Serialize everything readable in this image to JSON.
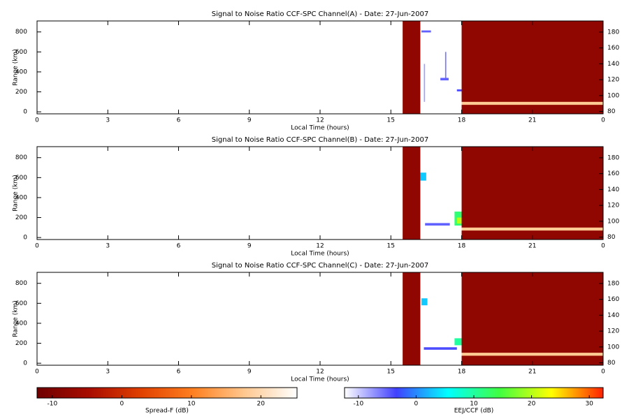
{
  "chart_data": [
    {
      "type": "heatmap",
      "title": "Signal to Noise Ratio CCF-SPC Channel(A) - Date: 27-Jun-2007",
      "xlabel": "Local Time (hours)",
      "ylabel": "Range (km)",
      "xlim": [
        0,
        24
      ],
      "xticks": [
        0,
        3,
        6,
        9,
        12,
        15,
        18,
        21,
        {
          "value": 24,
          "label": "0"
        }
      ],
      "ylim": [
        -20,
        910
      ],
      "yticks": [
        0,
        200,
        400,
        600,
        800
      ],
      "y2lim": [
        77,
        194
      ],
      "y2ticks": [
        80,
        100,
        120,
        140,
        160,
        180
      ],
      "patches": [
        {
          "t0": 15.5,
          "t1": 16.25,
          "r0": -20,
          "r1": 910,
          "value": -8,
          "scale": 3
        },
        {
          "t0": 18,
          "t1": 24,
          "r0": -20,
          "r1": 910,
          "value": -8,
          "scale": 3
        },
        {
          "t0": 18,
          "t1": 24,
          "r0": 70,
          "r1": 100,
          "value": 18,
          "scale": 3
        },
        {
          "t0": 16.3,
          "t1": 16.7,
          "r0": 795,
          "r1": 815,
          "value": -5,
          "scale": 4
        },
        {
          "t0": 17.1,
          "t1": 17.45,
          "r0": 315,
          "r1": 340,
          "value": -5,
          "scale": 4
        },
        {
          "t0": 17.3,
          "t1": 17.35,
          "r0": 340,
          "r1": 600,
          "value": -6,
          "scale": 4
        },
        {
          "t0": 17.8,
          "t1": 18,
          "r0": 205,
          "r1": 225,
          "value": -4,
          "scale": 4
        },
        {
          "t0": 16.4,
          "t1": 16.45,
          "r0": 100,
          "r1": 480,
          "value": -8,
          "scale": 4
        }
      ]
    },
    {
      "type": "heatmap",
      "title": "Signal to Noise Ratio CCF-SPC Channel(B) - Date: 27-Jun-2007",
      "xlabel": "Local Time (hours)",
      "ylabel": "Range (km)",
      "xlim": [
        0,
        24
      ],
      "xticks": [
        0,
        3,
        6,
        9,
        12,
        15,
        18,
        21,
        {
          "value": 24,
          "label": "0"
        }
      ],
      "ylim": [
        -20,
        910
      ],
      "yticks": [
        0,
        200,
        400,
        600,
        800
      ],
      "y2lim": [
        77,
        194
      ],
      "y2ticks": [
        80,
        100,
        120,
        140,
        160,
        180
      ],
      "patches": [
        {
          "t0": 15.5,
          "t1": 16.25,
          "r0": -20,
          "r1": 910,
          "value": -8,
          "scale": 3
        },
        {
          "t0": 18,
          "t1": 24,
          "r0": -20,
          "r1": 910,
          "value": -8,
          "scale": 3
        },
        {
          "t0": 18,
          "t1": 24,
          "r0": 70,
          "r1": 100,
          "value": 18,
          "scale": 3
        },
        {
          "t0": 16.25,
          "t1": 16.5,
          "r0": 570,
          "r1": 650,
          "value": 3,
          "scale": 4
        },
        {
          "t0": 16.45,
          "t1": 17.5,
          "r0": 120,
          "r1": 145,
          "value": -5,
          "scale": 4
        },
        {
          "t0": 17.7,
          "t1": 18,
          "r0": 120,
          "r1": 260,
          "value": 12,
          "scale": 4
        },
        {
          "t0": 17.8,
          "t1": 18,
          "r0": 140,
          "r1": 200,
          "value": 20,
          "scale": 4
        }
      ]
    },
    {
      "type": "heatmap",
      "title": "Signal to Noise Ratio CCF-SPC Channel(C) - Date: 27-Jun-2007",
      "xlabel": "Local Time (hours)",
      "ylabel": "Range (km)",
      "xlim": [
        0,
        24
      ],
      "xticks": [
        0,
        3,
        6,
        9,
        12,
        15,
        18,
        21,
        {
          "value": 24,
          "label": "0"
        }
      ],
      "ylim": [
        -20,
        910
      ],
      "yticks": [
        0,
        200,
        400,
        600,
        800
      ],
      "y2lim": [
        77,
        194
      ],
      "y2ticks": [
        80,
        100,
        120,
        140,
        160,
        180
      ],
      "patches": [
        {
          "t0": 15.5,
          "t1": 16.25,
          "r0": -20,
          "r1": 910,
          "value": -8,
          "scale": 3
        },
        {
          "t0": 18,
          "t1": 24,
          "r0": -20,
          "r1": 910,
          "value": -8,
          "scale": 3
        },
        {
          "t0": 18,
          "t1": 24,
          "r0": 75,
          "r1": 105,
          "value": 18,
          "scale": 3
        },
        {
          "t0": 16.3,
          "t1": 16.55,
          "r0": 580,
          "r1": 650,
          "value": 3,
          "scale": 4
        },
        {
          "t0": 16.4,
          "t1": 17.8,
          "r0": 135,
          "r1": 160,
          "value": -4,
          "scale": 4
        },
        {
          "t0": 17.7,
          "t1": 18,
          "r0": 180,
          "r1": 250,
          "value": 10,
          "scale": 4
        }
      ]
    },
    {
      "type": "colorbar",
      "label": "Spread-F (dB)",
      "xlim": [
        -12.2,
        25.2
      ],
      "xticks": [
        -10,
        0,
        10,
        20
      ],
      "colors": [
        "#6e0000",
        "#a80c00",
        "#e04000",
        "#ff8020",
        "#ffc890",
        "#ffffff"
      ]
    },
    {
      "type": "colorbar",
      "label": "EEJ/CCF (dB)",
      "xlim": [
        -12.4,
        32.4
      ],
      "xticks": [
        -10,
        0,
        10,
        20,
        30
      ],
      "colors": [
        "#ffffff",
        "#4040ff",
        "#00ffff",
        "#40ff40",
        "#ffff00",
        "#ff2000"
      ]
    }
  ]
}
